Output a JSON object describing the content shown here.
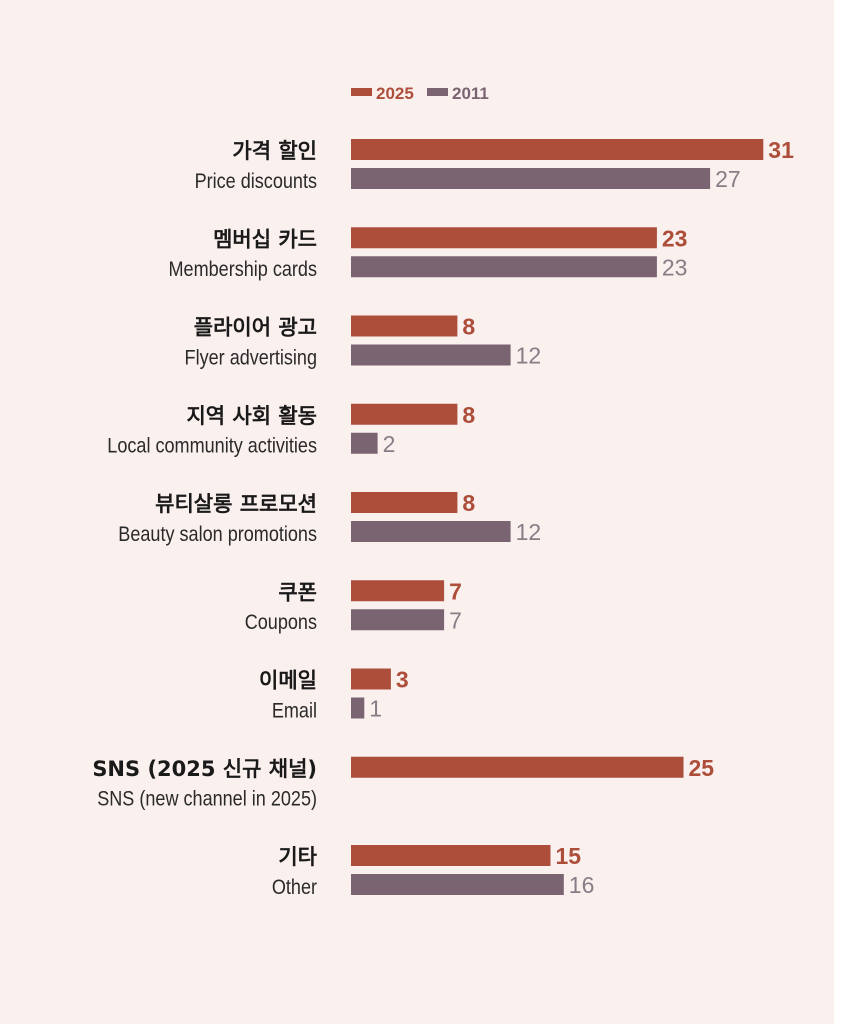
{
  "chart_data": {
    "type": "bar",
    "orientation": "horizontal",
    "legend_position": "top",
    "grid": false,
    "categories": [
      {
        "ko": "가격 할인",
        "en": "Price discounts"
      },
      {
        "ko": "멤버십 카드",
        "en": "Membership cards"
      },
      {
        "ko": "플라이어 광고",
        "en": "Flyer advertising"
      },
      {
        "ko": "지역 사회 활동",
        "en": "Local community activities"
      },
      {
        "ko": "뷰티살롱 프로모션",
        "en": "Beauty salon promotions"
      },
      {
        "ko": "쿠폰",
        "en": "Coupons"
      },
      {
        "ko": "이메일",
        "en": "Email"
      },
      {
        "ko": "SNS (2025 신규 채널)",
        "en": "SNS (new channel in 2025)"
      },
      {
        "ko": "기타",
        "en": "Other"
      }
    ],
    "series": [
      {
        "name": "2025",
        "color": "#ad4e3b",
        "values": [
          31,
          23,
          8,
          8,
          8,
          7,
          3,
          25,
          15
        ]
      },
      {
        "name": "2011",
        "color": "#7a6472",
        "values": [
          27,
          23,
          12,
          2,
          12,
          7,
          1,
          null,
          16
        ]
      }
    ],
    "value_colors": {
      "2025": "#ad4e3b",
      "2011": "#8a7c86"
    }
  }
}
